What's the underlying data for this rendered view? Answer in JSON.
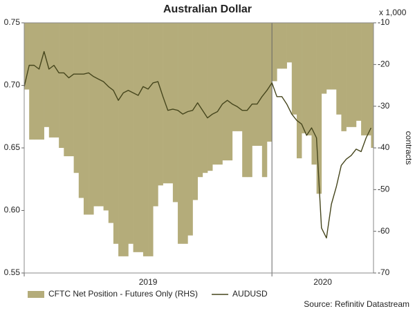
{
  "chart_data": {
    "type": "combo",
    "title": "Australian Dollar",
    "y2_unit": "x 1,000",
    "y2_label": "contracts",
    "source": "Source: Refinitiv Datastream",
    "x": [
      2019,
      2019.02,
      2019.04,
      2019.06,
      2019.08,
      2019.1,
      2019.12,
      2019.14,
      2019.16,
      2019.18,
      2019.2,
      2019.22,
      2019.24,
      2019.26,
      2019.28,
      2019.3,
      2019.32,
      2019.34,
      2019.36,
      2019.38,
      2019.4,
      2019.42,
      2019.44,
      2019.46,
      2019.48,
      2019.5,
      2019.52,
      2019.54,
      2019.56,
      2019.58,
      2019.6,
      2019.62,
      2019.64,
      2019.66,
      2019.68,
      2019.7,
      2019.72,
      2019.74,
      2019.76,
      2019.78,
      2019.8,
      2019.82,
      2019.84,
      2019.86,
      2019.88,
      2019.9,
      2019.92,
      2019.94,
      2019.96,
      2019.98,
      2020,
      2020.02,
      2020.04,
      2020.06,
      2020.08,
      2020.1,
      2020.12,
      2020.14,
      2020.16,
      2020.18,
      2020.2,
      2020.22,
      2020.24,
      2020.26,
      2020.28,
      2020.3,
      2020.32,
      2020.34,
      2020.36,
      2020.38,
      2020.4
    ],
    "series": [
      {
        "name": "CFTC Net Position - Futures Only (RHS)",
        "type": "bar",
        "axis": "y2",
        "color": "#b4ac7a",
        "values": [
          -26,
          -38,
          -38,
          -38,
          -35,
          -37.5,
          -37.5,
          -40,
          -42,
          -42,
          -46,
          -52,
          -56,
          -56,
          -54,
          -54,
          -55,
          -58,
          -63,
          -66,
          -66,
          -63,
          -65,
          -65,
          -66,
          -66,
          -54,
          -49,
          -48.5,
          -48.5,
          -53,
          -63,
          -63,
          -61,
          -52.5,
          -47,
          -46,
          -45.5,
          -44,
          -44,
          -43,
          -43,
          -36,
          -36,
          -47,
          -47,
          -39.5,
          -39.5,
          -47,
          -38.5,
          -24,
          -21,
          -21,
          -19.5,
          -32,
          -42.5,
          -36.5,
          -37,
          -44,
          -51,
          -27,
          -26,
          -26,
          -32,
          -36,
          -35,
          -35,
          -33.5,
          -37,
          -37,
          -40
        ]
      },
      {
        "name": "AUDUSD",
        "type": "line",
        "axis": "y",
        "color": "#45451c",
        "values": [
          0.699,
          0.716,
          0.716,
          0.713,
          0.727,
          0.713,
          0.716,
          0.71,
          0.71,
          0.706,
          0.709,
          0.709,
          0.709,
          0.71,
          0.707,
          0.705,
          0.703,
          0.699,
          0.696,
          0.688,
          0.694,
          0.696,
          0.694,
          0.692,
          0.699,
          0.697,
          0.702,
          0.703,
          0.691,
          0.68,
          0.681,
          0.68,
          0.677,
          0.679,
          0.68,
          0.686,
          0.68,
          0.674,
          0.677,
          0.679,
          0.685,
          0.688,
          0.685,
          0.683,
          0.68,
          0.68,
          0.685,
          0.685,
          0.691,
          0.696,
          0.702,
          0.691,
          0.691,
          0.685,
          0.677,
          0.672,
          0.669,
          0.66,
          0.666,
          0.658,
          0.586,
          0.578,
          0.605,
          0.619,
          0.636,
          0.641,
          0.644,
          0.649,
          0.647,
          0.658,
          0.666
        ]
      }
    ],
    "xlim": [
      2019,
      2020.41
    ],
    "xticks": [
      2019,
      2020
    ],
    "xgrid": true,
    "ylim": [
      0.55,
      0.75
    ],
    "yticks": [
      0.55,
      {
        "value": 0.6,
        "label": "0.60"
      },
      0.65,
      {
        "value": 0.7,
        "label": "0.70"
      },
      0.75
    ],
    "y2lim": [
      -70,
      -10
    ],
    "y2ticks": [
      -70,
      -60,
      -50,
      -40,
      -30,
      -20,
      -10
    ],
    "legend": "bottom"
  }
}
